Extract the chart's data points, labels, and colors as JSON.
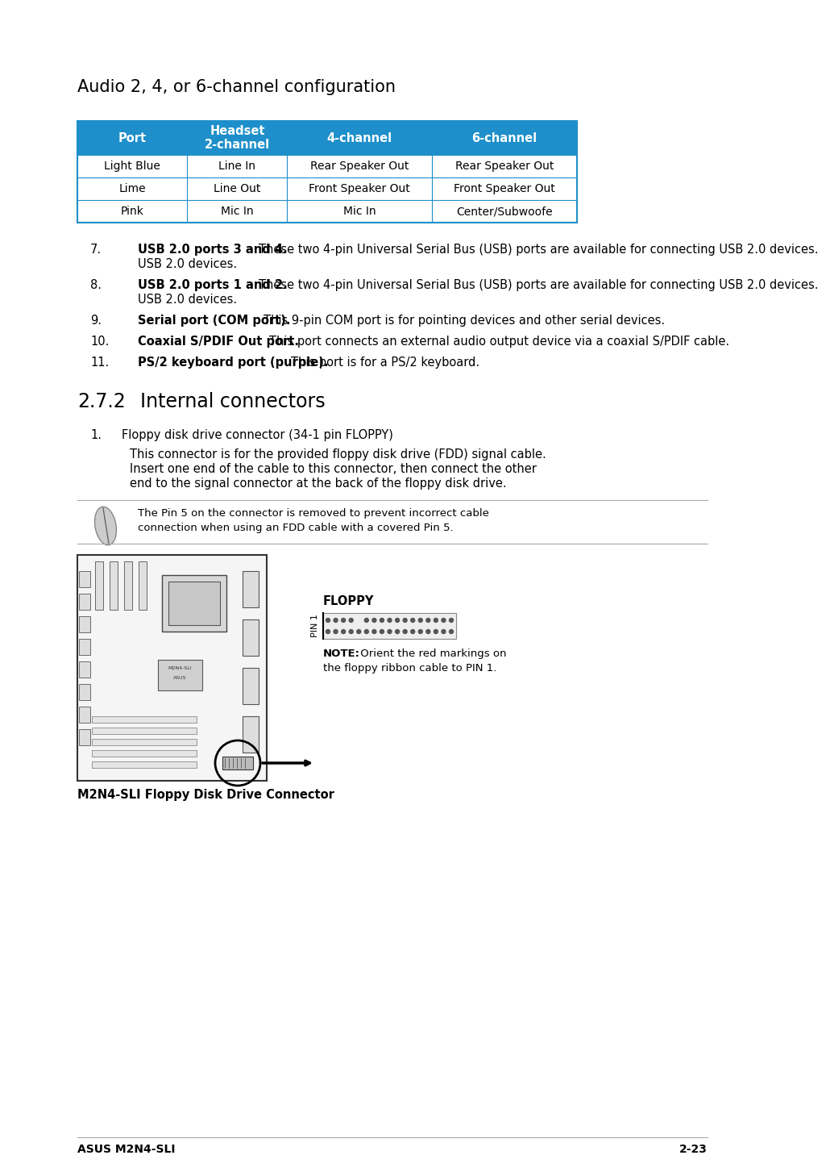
{
  "page_bg": "#ffffff",
  "title": "Audio 2, 4, or 6-channel configuration",
  "title_fontsize": 15,
  "table_header_bg": "#1e8fca",
  "table_header_text_color": "#ffffff",
  "table_border_color": "#1e8fca",
  "table_col_headers": [
    "Port",
    "Headset\n2-channel",
    "4-channel",
    "6-channel"
  ],
  "table_rows": [
    [
      "Light Blue",
      "Line In",
      "Rear Speaker Out",
      "Rear Speaker Out"
    ],
    [
      "Lime",
      "Line Out",
      "Front Speaker Out",
      "Front Speaker Out"
    ],
    [
      "Pink",
      "Mic In",
      "Mic In",
      "Center/Subwoofe"
    ]
  ],
  "list_items": [
    {
      "number": "7.",
      "bold_text": "USB 2.0 ports 3 and 4.",
      "normal_text": " These two 4-pin Universal Serial Bus (USB) ports are available for connecting USB 2.0 devices."
    },
    {
      "number": "8.",
      "bold_text": "USB 2.0 ports 1 and 2.",
      "normal_text": " These two 4-pin Universal Serial Bus (USB) ports are available for connecting USB 2.0 devices."
    },
    {
      "number": "9.",
      "bold_text": "Serial port (COM port).",
      "normal_text": " This 9-pin COM port is for pointing devices and other serial devices."
    },
    {
      "number": "10.",
      "bold_text": "Coaxial S/PDIF Out port.",
      "normal_text": " This port connects an external audio output device via a coaxial S/PDIF cable."
    },
    {
      "number": "11.",
      "bold_text": "PS/2 keyboard port (purple).",
      "normal_text": " This port is for a PS/2 keyboard."
    }
  ],
  "section_title_num": "2.7.2",
  "section_title_text": "Internal connectors",
  "item1_num": "1.",
  "item1_title": "Floppy disk drive connector (34-1 pin FLOPPY)",
  "item1_body_lines": [
    "This connector is for the provided floppy disk drive (FDD) signal cable.",
    "Insert one end of the cable to this connector, then connect the other",
    "end to the signal connector at the back of the floppy disk drive."
  ],
  "note_lines": [
    "The Pin 5 on the connector is removed to prevent incorrect cable",
    "connection when using an FDD cable with a covered Pin 5."
  ],
  "floppy_label": "FLOPPY",
  "pin_label": "PIN 1",
  "note_bold": "NOTE:",
  "note_normal": " Orient the red markings on",
  "note_normal2": "the floppy ribbon cable to PIN 1.",
  "caption": "M2N4-SLI Floppy Disk Drive Connector",
  "footer_left": "ASUS M2N4-SLI",
  "footer_right": "2-23",
  "footer_line_color": "#aaaaaa",
  "text_color": "#000000"
}
